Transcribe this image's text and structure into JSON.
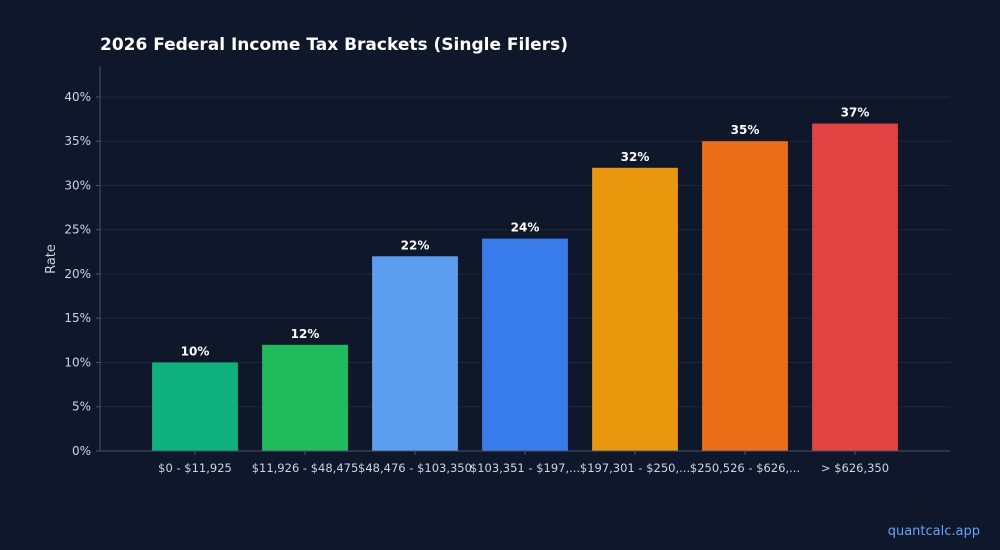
{
  "chart_data": {
    "type": "bar",
    "title": "2026 Federal Income Tax Brackets (Single Filers)",
    "xlabel": "",
    "ylabel": "Rate",
    "categories": [
      "$0 - $11,925",
      "$11,926 - $48,475",
      "$48,476 - $103,350",
      "$103,351 - $197,...",
      "$197,301 - $250,...",
      "$250,526 - $626,...",
      "> $626,350"
    ],
    "tick_labels": [
      "$0 - $11,925",
      "$11,926 - $48,475",
      "$48,476 - $103,350",
      "$103,351 - $197,...",
      "$197,301 - $250,...",
      "$250,526 - $626,...",
      "> $626,350"
    ],
    "values": [
      10,
      12,
      22,
      24,
      32,
      35,
      37
    ],
    "value_labels": [
      "10%",
      "12%",
      "22%",
      "24%",
      "32%",
      "35%",
      "37%"
    ],
    "colors": [
      "#10b981",
      "#22c55e",
      "#60a5fa",
      "#3b82f6",
      "#f59e0b",
      "#f97316",
      "#ef4444"
    ],
    "ylim": [
      0,
      43.5
    ],
    "yticks": [
      0,
      5,
      10,
      15,
      20,
      25,
      30,
      35,
      40
    ],
    "ytick_labels": [
      "0%",
      "5%",
      "10%",
      "15%",
      "20%",
      "25%",
      "30%",
      "35%",
      "40%"
    ],
    "grid": true,
    "legend": "none"
  },
  "footer": {
    "watermark": "quantcalc.app"
  },
  "theme": {
    "background": "#0f172a",
    "axis_color": "#475569",
    "grid_color": "#1e293b",
    "text_color": "#cbd5e1",
    "title_color": "#ffffff",
    "watermark_color": "#60a5fa"
  }
}
